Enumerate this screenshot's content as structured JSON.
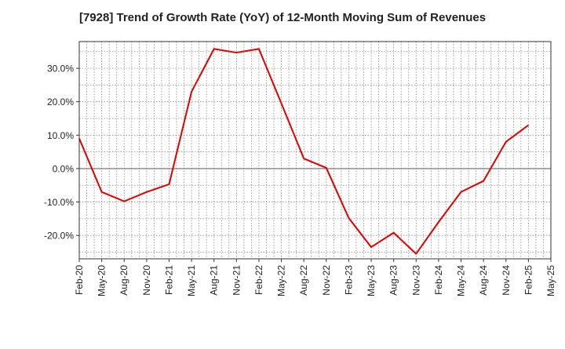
{
  "chart_data": {
    "type": "line",
    "title": "[7928]  Trend of Growth Rate (YoY) of 12-Month Moving Sum of Revenues",
    "xlabel": "",
    "ylabel": "",
    "ylim": [
      -27,
      38
    ],
    "y_ticks": [
      -20,
      -10,
      0,
      10,
      20,
      30
    ],
    "y_tick_labels": [
      "-20.0%",
      "-10.0%",
      "0.0%",
      "10.0%",
      "20.0%",
      "30.0%"
    ],
    "x_range": [
      "Feb-20",
      "May-25"
    ],
    "x_tick_labels": [
      "Feb-20",
      "May-20",
      "Aug-20",
      "Nov-20",
      "Feb-21",
      "May-21",
      "Aug-21",
      "Nov-21",
      "Feb-22",
      "May-22",
      "Aug-22",
      "Nov-22",
      "Feb-23",
      "May-23",
      "Aug-23",
      "Nov-23",
      "Feb-24",
      "May-24",
      "Aug-24",
      "Nov-24",
      "Feb-25",
      "May-25"
    ],
    "grid": true,
    "series": [
      {
        "color": "#e00000",
        "x": [
          "Feb-20",
          "May-20",
          "Aug-20",
          "Nov-20",
          "Feb-21",
          "May-21",
          "Aug-21",
          "Nov-21",
          "Feb-22",
          "May-22",
          "Aug-22",
          "Nov-22",
          "Feb-23",
          "May-23",
          "Aug-23",
          "Nov-23",
          "Feb-24",
          "May-24",
          "Aug-24",
          "Nov-24",
          "Feb-25"
        ],
        "values": [
          9.0,
          -7.0,
          -9.8,
          -7.0,
          -4.7,
          23.0,
          35.8,
          34.7,
          35.8,
          19.5,
          3.0,
          0.2,
          -14.8,
          -23.5,
          -19.2,
          -25.5,
          -16.0,
          -7.0,
          -3.7,
          8.0,
          13.0
        ]
      }
    ]
  }
}
